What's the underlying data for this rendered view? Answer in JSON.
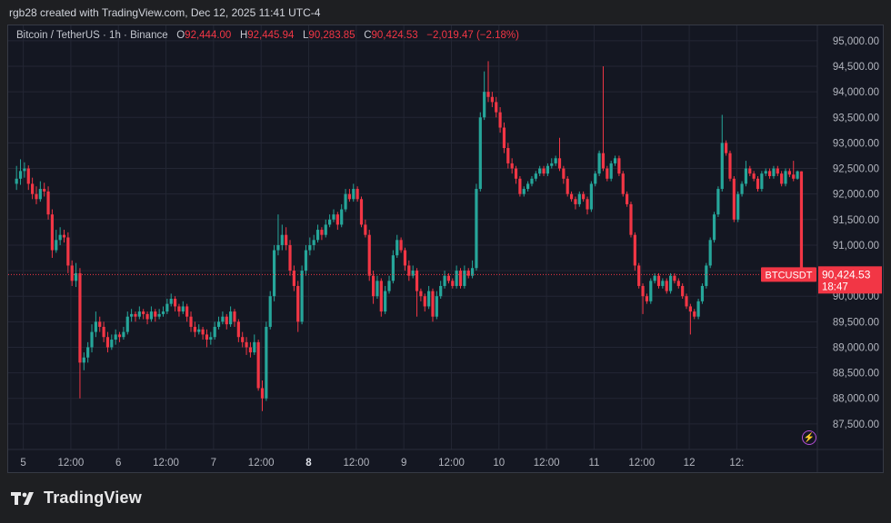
{
  "header": {
    "text": "rgb28 created with TradingView.com, Dec 12, 2025 11:41 UTC-4"
  },
  "legend": {
    "symbol": "Bitcoin / TetherUS · 1h · Binance",
    "o_label": "O",
    "o_value": "92,444.00",
    "h_label": "H",
    "h_value": "92,445.94",
    "l_label": "L",
    "l_value": "90,283.85",
    "c_label": "C",
    "c_value": "90,424.53",
    "change": "−2,019.47 (−2.18%)"
  },
  "badges": {
    "symbol_label": "BTCUSDT",
    "price": "90,424.53",
    "countdown": "18:47"
  },
  "footer": {
    "brand": "TradingView"
  },
  "colors": {
    "up": "#26a69a",
    "down": "#f23645",
    "background": "#141722",
    "grid": "#232634",
    "axis_text": "#b2b5be"
  },
  "chart_data": {
    "type": "candlestick",
    "ylim": [
      87000,
      95300
    ],
    "y_ticks": [
      "95,000.00",
      "94,500.00",
      "94,000.00",
      "93,500.00",
      "93,000.00",
      "92,500.00",
      "92,000.00",
      "91,500.00",
      "91,000.00",
      "90,500.00",
      "90,000.00",
      "89,500.00",
      "89,000.00",
      "88,500.00",
      "88,000.00",
      "87,500.00"
    ],
    "y_tick_values": [
      95000,
      94500,
      94000,
      93500,
      93000,
      92500,
      92000,
      91500,
      91000,
      90500,
      90000,
      89500,
      89000,
      88500,
      88000,
      87500
    ],
    "x_ticks": [
      "5",
      "12:00",
      "6",
      "12:00",
      "7",
      "12:00",
      "8",
      "12:00",
      "9",
      "12:00",
      "10",
      "12:00",
      "11",
      "12:00",
      "12",
      "12:"
    ],
    "x_tick_bars": [
      2.2,
      14.2,
      26.2,
      38.2,
      50.2,
      62.2,
      74.2,
      86.2,
      98.2,
      110.2,
      122.2,
      134.2,
      146.2,
      158.2,
      170.2,
      182.2
    ],
    "last_price": 90424.53,
    "closes": [
      92300,
      92450,
      92500,
      92200,
      92000,
      91900,
      92100,
      92050,
      91600,
      90900,
      91100,
      91200,
      91150,
      90600,
      90300,
      90450,
      88700,
      88800,
      89000,
      89300,
      89500,
      89400,
      89200,
      89000,
      89150,
      89250,
      89200,
      89300,
      89600,
      89650,
      89600,
      89700,
      89650,
      89550,
      89700,
      89600,
      89650,
      89700,
      89850,
      89950,
      89800,
      89700,
      89800,
      89600,
      89400,
      89300,
      89350,
      89250,
      89150,
      89200,
      89400,
      89500,
      89600,
      89450,
      89700,
      89500,
      89200,
      89100,
      89000,
      88900,
      89100,
      88200,
      88000,
      89400,
      90000,
      90900,
      91000,
      91200,
      91000,
      90500,
      90200,
      89500,
      90500,
      90900,
      91000,
      91100,
      91300,
      91200,
      91400,
      91500,
      91600,
      91400,
      91700,
      92000,
      91900,
      92100,
      91900,
      91400,
      91200,
      90400,
      90000,
      90300,
      89700,
      90100,
      90300,
      90800,
      91100,
      90900,
      90600,
      90400,
      90500,
      90100,
      90000,
      89800,
      90100,
      89600,
      90000,
      90200,
      90400,
      90300,
      90200,
      90500,
      90200,
      90500,
      90400,
      90550,
      92100,
      93500,
      94000,
      93900,
      93800,
      93600,
      93300,
      92900,
      92600,
      92500,
      92300,
      92000,
      92100,
      92200,
      92300,
      92400,
      92500,
      92400,
      92550,
      92600,
      92700,
      92500,
      92300,
      92000,
      91900,
      91800,
      92000,
      91900,
      91700,
      92200,
      92400,
      92800,
      92500,
      92300,
      92600,
      92700,
      92400,
      92000,
      91800,
      91200,
      90600,
      90200,
      90000,
      89900,
      90300,
      90400,
      90200,
      90300,
      90100,
      90400,
      90300,
      90200,
      90000,
      89800,
      89700,
      89600,
      89900,
      90200,
      90600,
      91100,
      91600,
      92100,
      93000,
      92800,
      92300,
      91500,
      92000,
      92200,
      92500,
      92400,
      92300,
      92100,
      92400,
      92450,
      92350,
      92500,
      92400,
      92200,
      92450,
      92380,
      92300,
      92444,
      90424.53
    ],
    "candles": [
      [
        92200,
        92550,
        92080,
        92300
      ],
      [
        92300,
        92680,
        92180,
        92450
      ],
      [
        92450,
        92620,
        92320,
        92500
      ],
      [
        92500,
        92560,
        92080,
        92200
      ],
      [
        92200,
        92320,
        91900,
        92000
      ],
      [
        92000,
        92150,
        91800,
        91900
      ],
      [
        91900,
        92250,
        91850,
        92100
      ],
      [
        92100,
        92220,
        91950,
        92050
      ],
      [
        92050,
        92150,
        91500,
        91600
      ],
      [
        91600,
        91700,
        90750,
        90900
      ],
      [
        90900,
        91300,
        90850,
        91100
      ],
      [
        91100,
        91350,
        91000,
        91200
      ],
      [
        91200,
        91300,
        91050,
        91150
      ],
      [
        91150,
        91250,
        90450,
        90600
      ],
      [
        90600,
        90700,
        90200,
        90300
      ],
      [
        90300,
        90650,
        90180,
        90450
      ],
      [
        90450,
        90550,
        88000,
        88700
      ],
      [
        88700,
        88900,
        88550,
        88800
      ],
      [
        88800,
        89100,
        88700,
        89000
      ],
      [
        89000,
        89450,
        88900,
        89300
      ],
      [
        89300,
        89700,
        89200,
        89500
      ],
      [
        89500,
        89600,
        89300,
        89400
      ],
      [
        89400,
        89500,
        89100,
        89200
      ],
      [
        89200,
        89300,
        88900,
        89000
      ],
      [
        89000,
        89250,
        88950,
        89150
      ],
      [
        89150,
        89350,
        89050,
        89250
      ],
      [
        89250,
        89300,
        89100,
        89200
      ],
      [
        89200,
        89400,
        89150,
        89300
      ],
      [
        89300,
        89700,
        89250,
        89600
      ],
      [
        89600,
        89750,
        89500,
        89650
      ],
      [
        89650,
        89700,
        89500,
        89600
      ],
      [
        89600,
        89800,
        89550,
        89700
      ],
      [
        89700,
        89750,
        89550,
        89650
      ],
      [
        89650,
        89700,
        89450,
        89550
      ],
      [
        89550,
        89800,
        89500,
        89700
      ],
      [
        89700,
        89750,
        89500,
        89600
      ],
      [
        89600,
        89750,
        89550,
        89650
      ],
      [
        89650,
        89800,
        89600,
        89700
      ],
      [
        89700,
        89950,
        89650,
        89850
      ],
      [
        89850,
        90050,
        89800,
        89950
      ],
      [
        89950,
        90000,
        89700,
        89800
      ],
      [
        89800,
        89850,
        89600,
        89700
      ],
      [
        89700,
        89900,
        89650,
        89800
      ],
      [
        89800,
        89850,
        89500,
        89600
      ],
      [
        89600,
        89700,
        89300,
        89400
      ],
      [
        89400,
        89500,
        89200,
        89300
      ],
      [
        89300,
        89450,
        89250,
        89350
      ],
      [
        89350,
        89400,
        89150,
        89250
      ],
      [
        89250,
        89350,
        89000,
        89150
      ],
      [
        89150,
        89300,
        89050,
        89200
      ],
      [
        89200,
        89500,
        89150,
        89400
      ],
      [
        89400,
        89600,
        89350,
        89500
      ],
      [
        89500,
        89700,
        89450,
        89600
      ],
      [
        89600,
        89650,
        89350,
        89450
      ],
      [
        89450,
        89800,
        89400,
        89700
      ],
      [
        89700,
        89750,
        89400,
        89500
      ],
      [
        89500,
        89550,
        89100,
        89200
      ],
      [
        89200,
        89300,
        89000,
        89100
      ],
      [
        89100,
        89200,
        88850,
        89000
      ],
      [
        89000,
        89100,
        88800,
        88900
      ],
      [
        88900,
        89250,
        88850,
        89100
      ],
      [
        89100,
        89150,
        88150,
        88200
      ],
      [
        88200,
        88350,
        87750,
        88000
      ],
      [
        88000,
        89500,
        87950,
        89400
      ],
      [
        89400,
        90100,
        89350,
        90000
      ],
      [
        90000,
        91000,
        89900,
        90900
      ],
      [
        90900,
        91600,
        90800,
        91000
      ],
      [
        91000,
        91400,
        90900,
        91200
      ],
      [
        91200,
        91350,
        90900,
        91000
      ],
      [
        91000,
        91100,
        90400,
        90500
      ],
      [
        90500,
        90600,
        90100,
        90200
      ],
      [
        90200,
        90300,
        89300,
        89500
      ],
      [
        89500,
        90600,
        89450,
        90500
      ],
      [
        90500,
        91000,
        90400,
        90900
      ],
      [
        90900,
        91150,
        90800,
        91000
      ],
      [
        91000,
        91200,
        90900,
        91100
      ],
      [
        91100,
        91400,
        91050,
        91300
      ],
      [
        91300,
        91350,
        91100,
        91200
      ],
      [
        91200,
        91500,
        91150,
        91400
      ],
      [
        91400,
        91600,
        91350,
        91500
      ],
      [
        91500,
        91700,
        91450,
        91600
      ],
      [
        91600,
        91650,
        91300,
        91400
      ],
      [
        91400,
        91800,
        91350,
        91700
      ],
      [
        91700,
        92100,
        91650,
        92000
      ],
      [
        92000,
        92100,
        91850,
        91900
      ],
      [
        91900,
        92200,
        91850,
        92100
      ],
      [
        92100,
        92150,
        91850,
        91900
      ],
      [
        91900,
        91950,
        91350,
        91400
      ],
      [
        91400,
        91500,
        91150,
        91200
      ],
      [
        91200,
        91300,
        90300,
        90400
      ],
      [
        90400,
        90500,
        89850,
        90000
      ],
      [
        90000,
        90400,
        89950,
        90300
      ],
      [
        90300,
        90350,
        89600,
        89700
      ],
      [
        89700,
        90200,
        89650,
        90100
      ],
      [
        90100,
        90400,
        90050,
        90300
      ],
      [
        90300,
        90900,
        90250,
        90800
      ],
      [
        90800,
        91200,
        90750,
        91100
      ],
      [
        91100,
        91150,
        90850,
        90900
      ],
      [
        90900,
        90950,
        90500,
        90600
      ],
      [
        90600,
        90700,
        90300,
        90400
      ],
      [
        90400,
        90600,
        90350,
        90500
      ],
      [
        90500,
        90550,
        89600,
        90100
      ],
      [
        90100,
        90150,
        89900,
        90000
      ],
      [
        90000,
        90050,
        89700,
        89800
      ],
      [
        89800,
        90200,
        89750,
        90100
      ],
      [
        90100,
        90150,
        89500,
        89600
      ],
      [
        89600,
        90100,
        89550,
        90000
      ],
      [
        90000,
        90300,
        89950,
        90200
      ],
      [
        90200,
        90500,
        90150,
        90400
      ],
      [
        90400,
        90450,
        90250,
        90300
      ],
      [
        90300,
        90350,
        90150,
        90200
      ],
      [
        90200,
        90600,
        90150,
        90500
      ],
      [
        90500,
        90550,
        90150,
        90200
      ],
      [
        90200,
        90600,
        90150,
        90500
      ],
      [
        90500,
        90550,
        90350,
        90400
      ],
      [
        90400,
        90700,
        90350,
        90550
      ],
      [
        90550,
        92200,
        90500,
        92100
      ],
      [
        92100,
        93600,
        92050,
        93500
      ],
      [
        93500,
        94400,
        93450,
        94000
      ],
      [
        94000,
        94600,
        93800,
        93900
      ],
      [
        93900,
        94000,
        93700,
        93800
      ],
      [
        93800,
        93900,
        93500,
        93600
      ],
      [
        93600,
        93700,
        93200,
        93300
      ],
      [
        93300,
        93400,
        92800,
        92900
      ],
      [
        92900,
        93000,
        92500,
        92600
      ],
      [
        92600,
        92700,
        92400,
        92500
      ],
      [
        92500,
        92550,
        92200,
        92300
      ],
      [
        92300,
        92350,
        91950,
        92000
      ],
      [
        92000,
        92150,
        91950,
        92100
      ],
      [
        92100,
        92250,
        92050,
        92200
      ],
      [
        92200,
        92350,
        92150,
        92300
      ],
      [
        92300,
        92450,
        92250,
        92400
      ],
      [
        92400,
        92550,
        92350,
        92500
      ],
      [
        92500,
        92550,
        92350,
        92400
      ],
      [
        92400,
        92600,
        92350,
        92550
      ],
      [
        92550,
        92700,
        92500,
        92600
      ],
      [
        92600,
        92750,
        92550,
        92700
      ],
      [
        92700,
        93100,
        92450,
        92500
      ],
      [
        92500,
        92550,
        92200,
        92300
      ],
      [
        92300,
        92350,
        91950,
        92000
      ],
      [
        92000,
        92050,
        91850,
        91900
      ],
      [
        91900,
        91950,
        91700,
        91800
      ],
      [
        91800,
        92050,
        91750,
        92000
      ],
      [
        92000,
        92050,
        91850,
        91900
      ],
      [
        91900,
        91950,
        91600,
        91700
      ],
      [
        91700,
        92250,
        91650,
        92200
      ],
      [
        92200,
        92450,
        92150,
        92400
      ],
      [
        92400,
        92850,
        92350,
        92800
      ],
      [
        92800,
        94500,
        92450,
        92500
      ],
      [
        92500,
        92550,
        92250,
        92300
      ],
      [
        92300,
        92650,
        92250,
        92600
      ],
      [
        92600,
        92750,
        92550,
        92700
      ],
      [
        92700,
        92750,
        92350,
        92400
      ],
      [
        92400,
        92450,
        91950,
        92000
      ],
      [
        92000,
        92050,
        91750,
        91800
      ],
      [
        91800,
        91850,
        91150,
        91200
      ],
      [
        91200,
        91250,
        90500,
        90600
      ],
      [
        90600,
        90650,
        90150,
        90200
      ],
      [
        90200,
        90250,
        89650,
        90000
      ],
      [
        90000,
        90050,
        89850,
        89900
      ],
      [
        89900,
        90350,
        89850,
        90300
      ],
      [
        90300,
        90450,
        90250,
        90400
      ],
      [
        90400,
        90450,
        90150,
        90200
      ],
      [
        90200,
        90350,
        90150,
        90300
      ],
      [
        90300,
        90350,
        90050,
        90100
      ],
      [
        90100,
        90450,
        90050,
        90400
      ],
      [
        90400,
        90450,
        90250,
        90300
      ],
      [
        90300,
        90350,
        90150,
        90200
      ],
      [
        90200,
        90250,
        89950,
        90000
      ],
      [
        90000,
        90050,
        89750,
        89800
      ],
      [
        89800,
        89850,
        89250,
        89700
      ],
      [
        89700,
        89750,
        89550,
        89600
      ],
      [
        89600,
        89950,
        89550,
        89900
      ],
      [
        89900,
        90250,
        89850,
        90200
      ],
      [
        90200,
        90650,
        90150,
        90600
      ],
      [
        90600,
        91150,
        90550,
        91100
      ],
      [
        91100,
        91650,
        91050,
        91600
      ],
      [
        91600,
        92150,
        91550,
        92100
      ],
      [
        92100,
        93550,
        92050,
        93000
      ],
      [
        93000,
        93050,
        92750,
        92800
      ],
      [
        92800,
        92850,
        92250,
        92300
      ],
      [
        92300,
        92350,
        91450,
        91500
      ],
      [
        91500,
        92050,
        91450,
        92000
      ],
      [
        92000,
        92250,
        91950,
        92200
      ],
      [
        92200,
        92650,
        92150,
        92500
      ],
      [
        92500,
        92550,
        92350,
        92400
      ],
      [
        92400,
        92450,
        92250,
        92300
      ],
      [
        92300,
        92350,
        92050,
        92100
      ],
      [
        92100,
        92450,
        92050,
        92400
      ],
      [
        92400,
        92500,
        92350,
        92450
      ],
      [
        92450,
        92500,
        92300,
        92350
      ],
      [
        92350,
        92550,
        92300,
        92500
      ],
      [
        92500,
        92550,
        92350,
        92400
      ],
      [
        92400,
        92450,
        92150,
        92200
      ],
      [
        92200,
        92500,
        92150,
        92450
      ],
      [
        92450,
        92500,
        92330,
        92380
      ],
      [
        92380,
        92650,
        92250,
        92300
      ],
      [
        92300,
        92460,
        92280,
        92444
      ],
      [
        92444,
        92446,
        90284,
        90424.53
      ]
    ]
  }
}
